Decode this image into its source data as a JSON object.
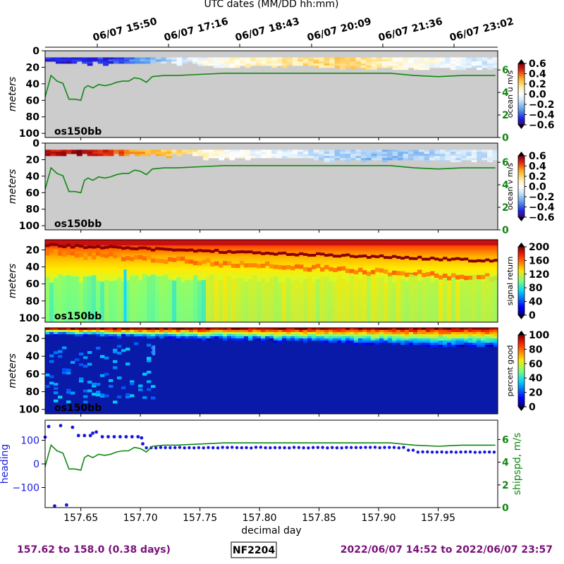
{
  "header": {
    "top_axis_label": "UTC dates (MM/DD hh:mm)",
    "utc_ticks": [
      "06/07 15:50",
      "06/07 17:16",
      "06/07 18:43",
      "06/07 20:09",
      "06/07 21:36",
      "06/07 23:02"
    ]
  },
  "footer": {
    "range_days": "157.62 to 158.0 (0.38 days)",
    "cruise_id": "NF2204",
    "range_dates": "2022/06/07 14:52 to 2022/06/07 23:57"
  },
  "colors": {
    "gray_fill": "#cccccc",
    "speed_line": "#118811",
    "heading_dots": "#1515e0",
    "footer_text": "#7a117a"
  },
  "chart_data": [
    {
      "type": "heatmap",
      "panel": "ocean-u",
      "instrument_label": "os150bb",
      "ylabel": "meters",
      "y_ticks": [
        "0",
        "20",
        "40",
        "60",
        "80",
        "100"
      ],
      "right_axis_ticks": [
        "0",
        "2",
        "4",
        "6"
      ],
      "colorbar_label": "ocean u m/s",
      "colorbar_ticks": [
        "0.6",
        "0.4",
        "0.2",
        "0.0",
        "−0.2",
        "−0.4",
        "−0.6"
      ],
      "colorbar_range": [
        -0.6,
        0.6
      ],
      "x_range": [
        157.62,
        158.0
      ],
      "depth_range": [
        0,
        105
      ],
      "valid_depth_max_m": 20,
      "near_surface_values_m_s": [
        -0.5,
        -0.5,
        -0.45,
        -0.3,
        -0.1,
        0.0,
        0.05,
        0.1,
        0.15,
        0.2,
        0.15,
        0.05,
        0.0,
        -0.05,
        -0.1
      ]
    },
    {
      "type": "heatmap",
      "panel": "ocean-v",
      "instrument_label": "os150bb",
      "ylabel": "meters",
      "y_ticks": [
        "0",
        "20",
        "40",
        "60",
        "80",
        "100"
      ],
      "right_axis_ticks": [
        "0",
        "2",
        "4",
        "6"
      ],
      "colorbar_label": "ocean v m/s",
      "colorbar_ticks": [
        "0.6",
        "0.4",
        "0.2",
        "0.0",
        "−0.2",
        "−0.4",
        "−0.6"
      ],
      "colorbar_range": [
        -0.6,
        0.6
      ],
      "x_range": [
        157.62,
        158.0
      ],
      "depth_range": [
        0,
        105
      ],
      "valid_depth_max_m": 20,
      "near_surface_values_m_s": [
        0.5,
        0.55,
        0.45,
        0.3,
        0.2,
        0.05,
        0.0,
        -0.05,
        -0.1,
        -0.15,
        -0.2,
        -0.2,
        -0.15,
        -0.1,
        -0.1
      ]
    },
    {
      "type": "heatmap",
      "panel": "signal-return",
      "instrument_label": "os150bb",
      "ylabel": "meters",
      "y_ticks": [
        "20",
        "40",
        "60",
        "80",
        "100"
      ],
      "colorbar_label": "signal return",
      "colorbar_ticks": [
        "200",
        "160",
        "120",
        "80",
        "40",
        "0"
      ],
      "colorbar_range": [
        0,
        200
      ],
      "x_range": [
        157.62,
        158.0
      ],
      "depth_range": [
        8,
        105
      ]
    },
    {
      "type": "heatmap",
      "panel": "percent-good",
      "instrument_label": "os150bb",
      "ylabel": "meters",
      "y_ticks": [
        "20",
        "40",
        "60",
        "80",
        "100"
      ],
      "colorbar_label": "percent good",
      "colorbar_ticks": [
        "100",
        "80",
        "60",
        "40",
        "20",
        "0"
      ],
      "colorbar_range": [
        0,
        100
      ],
      "x_range": [
        157.62,
        158.0
      ],
      "depth_range": [
        8,
        105
      ]
    },
    {
      "type": "scatter",
      "panel": "heading-speed",
      "xlabel": "decimal day",
      "x_ticks": [
        "157.65",
        "157.70",
        "157.75",
        "157.80",
        "157.85",
        "157.90",
        "157.95"
      ],
      "x_tick_values": [
        157.65,
        157.7,
        157.75,
        157.8,
        157.85,
        157.9,
        157.95
      ],
      "x_range": [
        157.62,
        158.0
      ],
      "ylabel": "heading",
      "y_ticks": [
        "100",
        "0",
        "−100"
      ],
      "y_range": [
        -185,
        185
      ],
      "right_ylabel": "shipspd, m/s",
      "right_axis_ticks": [
        "0",
        "2",
        "4",
        "6"
      ],
      "right_range": [
        0,
        7.7
      ],
      "heading_x": [
        157.62,
        157.623,
        157.628,
        157.633,
        157.638,
        157.643,
        157.648,
        157.653,
        157.658,
        157.66,
        157.663,
        157.668,
        157.673,
        157.678,
        157.683,
        157.688,
        157.693,
        157.698,
        157.701,
        157.7,
        157.705,
        157.9,
        157.92,
        157.93,
        157.997
      ],
      "heading_y": [
        113,
        158,
        -178,
        162,
        -174,
        155,
        120,
        120,
        120,
        130,
        135,
        115,
        115,
        115,
        115,
        115,
        115,
        115,
        110,
        85,
        70,
        70,
        62,
        50,
        52
      ],
      "speed_x": [
        157.62,
        157.625,
        157.63,
        157.635,
        157.64,
        157.645,
        157.65,
        157.653,
        157.656,
        157.66,
        157.665,
        157.67,
        157.675,
        157.68,
        157.685,
        157.69,
        157.695,
        157.7,
        157.705,
        157.71,
        157.72,
        157.73,
        157.75,
        157.77,
        157.79,
        157.81,
        157.83,
        157.85,
        157.87,
        157.89,
        157.91,
        157.93,
        157.95,
        157.97,
        157.99,
        157.998
      ],
      "speed_y": [
        3.6,
        5.5,
        5.0,
        4.8,
        3.4,
        3.4,
        3.3,
        4.4,
        4.6,
        4.4,
        4.7,
        4.6,
        4.7,
        4.9,
        5.0,
        5.0,
        5.3,
        5.2,
        4.9,
        5.4,
        5.5,
        5.5,
        5.6,
        5.7,
        5.7,
        5.7,
        5.7,
        5.7,
        5.7,
        5.7,
        5.7,
        5.5,
        5.4,
        5.5,
        5.5,
        5.5
      ]
    }
  ]
}
